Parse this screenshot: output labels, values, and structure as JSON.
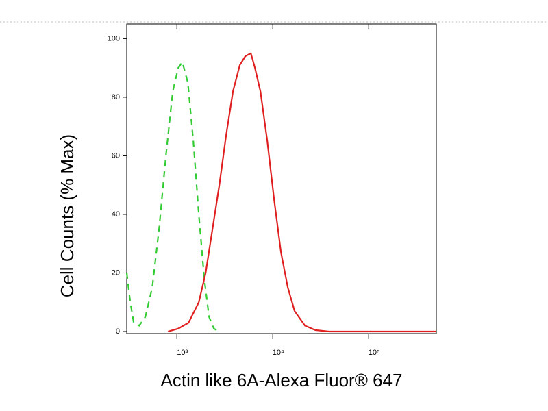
{
  "chart_data": {
    "type": "line",
    "x_label": "Actin like 6A-Alexa Fluor® 647",
    "y_label": "Cell Counts (% Max)",
    "xscale": "log",
    "xlim": [
      300,
      508000
    ],
    "ylim": [
      0,
      105
    ],
    "xticks": [
      {
        "value": 1000,
        "label": "10³"
      },
      {
        "value": 10000,
        "label": "10⁴"
      },
      {
        "value": 100000,
        "label": "10⁵"
      }
    ],
    "yticks": [
      0,
      20,
      40,
      60,
      80,
      100
    ],
    "series": [
      {
        "color": "#33cc33",
        "dash": true,
        "x": [
          300,
          327,
          355,
          405,
          469,
          553,
          652,
          769,
          906,
          1033,
          1141,
          1301,
          1484,
          1693,
          1931,
          2167,
          2430,
          2773
        ],
        "values": [
          20,
          10,
          3,
          2,
          5,
          15,
          35,
          60,
          82,
          90,
          92,
          85,
          65,
          40,
          18,
          5,
          1,
          0
        ]
      },
      {
        "color": "#e02020",
        "dash": false,
        "x": [
          807,
          1033,
          1323,
          1693,
          1995,
          2351,
          2773,
          3265,
          3847,
          4533,
          5179,
          5907,
          6520,
          7433,
          8767,
          10340,
          12180,
          14360,
          16910,
          21670,
          27780,
          38560,
          508000
        ],
        "values": [
          0,
          1,
          3,
          10,
          20,
          35,
          50,
          67,
          82,
          91,
          94,
          95,
          90,
          82,
          65,
          45,
          27,
          15,
          7,
          2,
          0.5,
          0,
          0
        ]
      }
    ]
  }
}
